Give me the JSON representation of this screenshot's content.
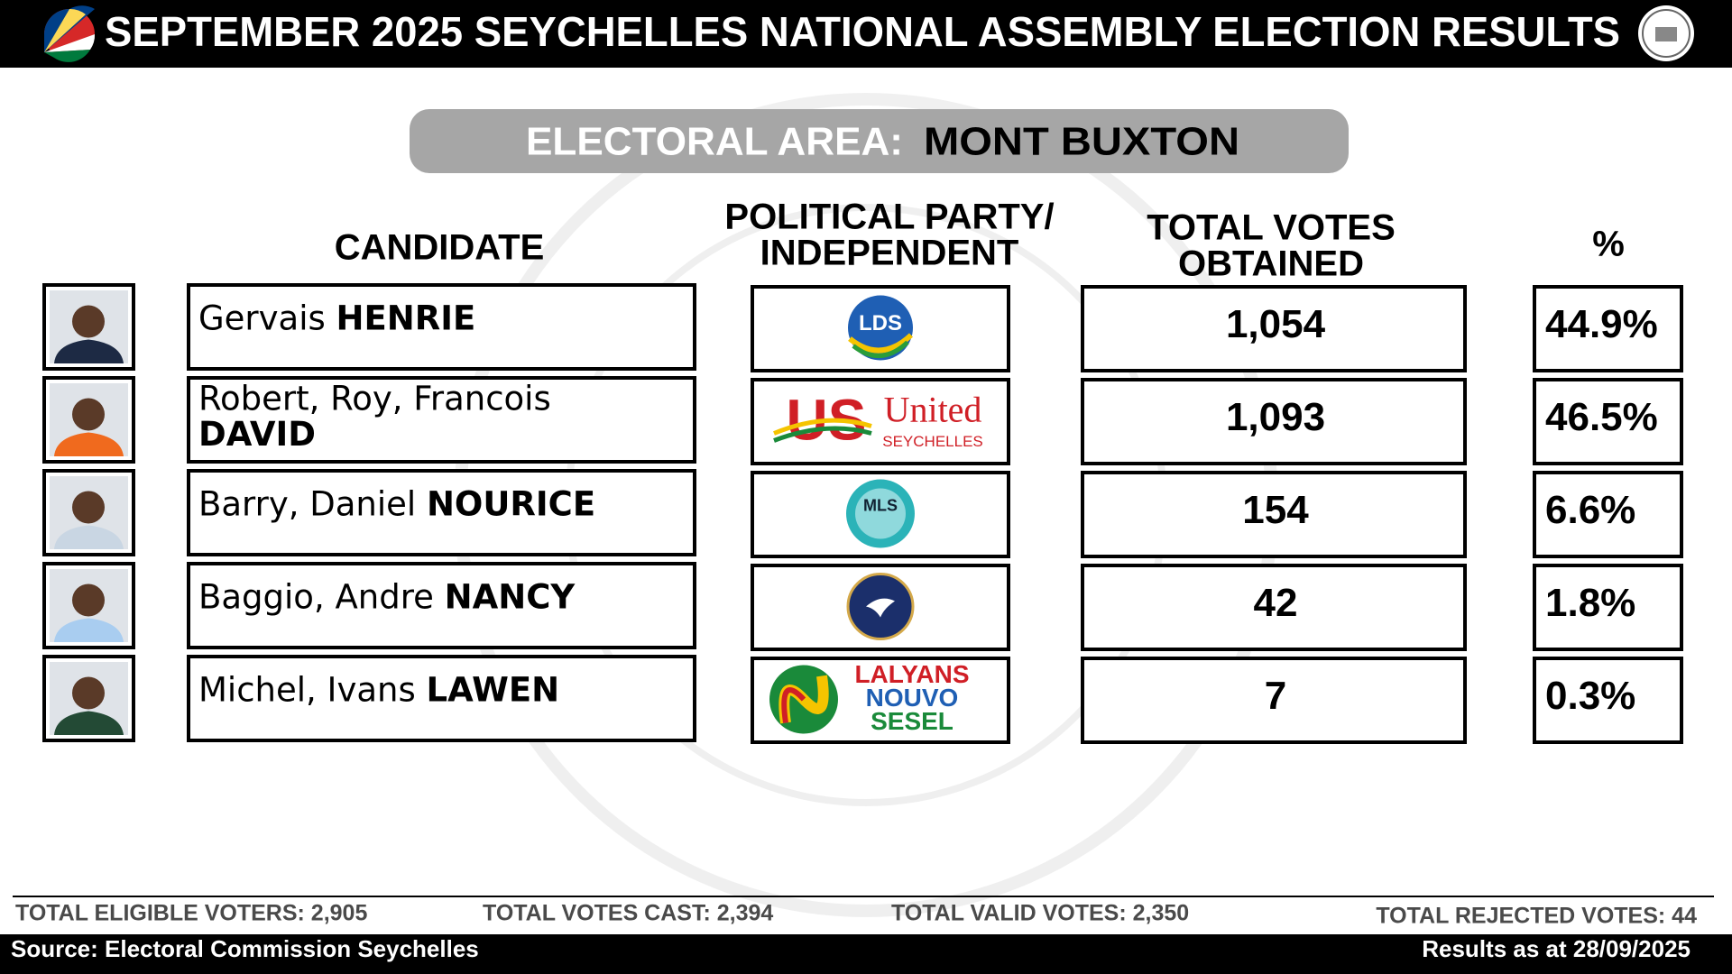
{
  "header": {
    "title": "SEPTEMBER 2025 SEYCHELLES NATIONAL ASSEMBLY ELECTION RESULTS"
  },
  "area": {
    "label": "ELECTORAL AREA:",
    "name": "MONT BUXTON"
  },
  "columns": {
    "candidate": "CANDIDATE",
    "party": [
      "POLITICAL PARTY/",
      "INDEPENDENT"
    ],
    "votes": [
      "TOTAL VOTES",
      "OBTAINED"
    ],
    "percent": "%"
  },
  "rows": [
    {
      "given": "Gervais",
      "surname": "HENRIE",
      "party_logo": [
        "LDS"
      ],
      "votes": "1,054",
      "percent": "44.9%"
    },
    {
      "given": "Robert, Roy, Francois",
      "surname": "DAVID",
      "party_logo": [
        "US",
        "United",
        "SEYCHELLES"
      ],
      "votes": "1,093",
      "percent": "46.5%"
    },
    {
      "given": "Barry, Daniel",
      "surname": "NOURICE",
      "party_logo": [
        "MLS"
      ],
      "votes": "154",
      "percent": "6.6%"
    },
    {
      "given": "Baggio, Andre",
      "surname": "NANCY",
      "votes": "42",
      "percent": "1.8%"
    },
    {
      "given": "Michel, Ivans",
      "surname": "LAWEN",
      "party_logo": [
        "LALYANS",
        "NOUVO",
        "SESEL"
      ],
      "votes": "7",
      "percent": "0.3%"
    }
  ],
  "totals": [
    "TOTAL ELIGIBLE VOTERS: 2,905",
    "TOTAL VOTES CAST: 2,394",
    "TOTAL VALID VOTES: 2,350",
    "TOTAL REJECTED VOTES: 44"
  ],
  "footer": {
    "source": "Source: Electoral Commission Seychelles",
    "as_at": "Results as at 28/09/2025"
  }
}
